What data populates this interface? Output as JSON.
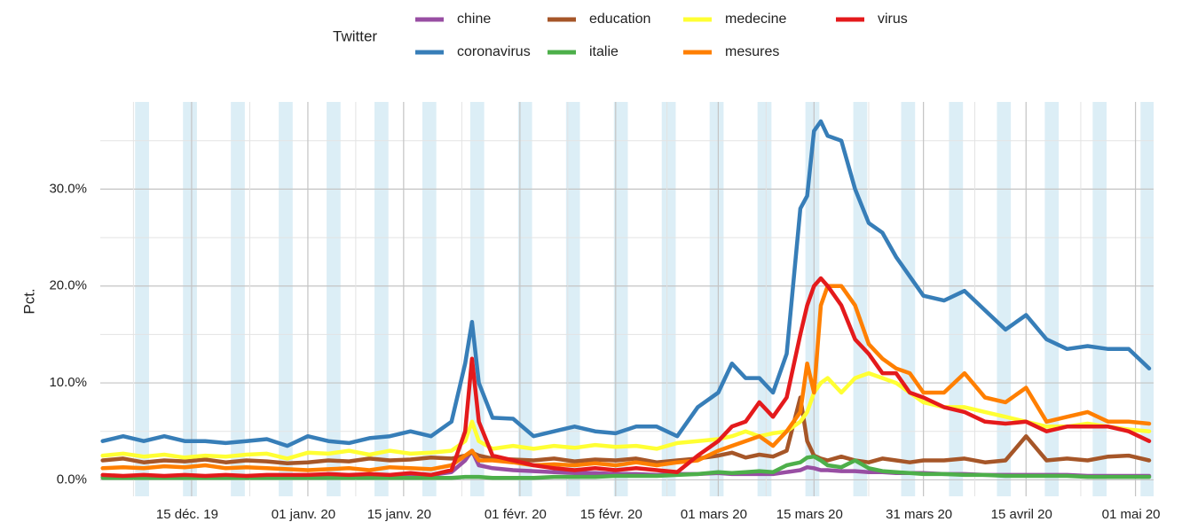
{
  "chart_data": {
    "type": "line",
    "legend_title": "Twitter",
    "y_label": "Pct.",
    "x": [
      "2019-12-02",
      "2019-12-05",
      "2019-12-08",
      "2019-12-11",
      "2019-12-14",
      "2019-12-17",
      "2019-12-20",
      "2019-12-23",
      "2019-12-26",
      "2019-12-29",
      "2020-01-01",
      "2020-01-04",
      "2020-01-07",
      "2020-01-10",
      "2020-01-13",
      "2020-01-16",
      "2020-01-19",
      "2020-01-22",
      "2020-01-24",
      "2020-01-25",
      "2020-01-26",
      "2020-01-28",
      "2020-01-31",
      "2020-02-03",
      "2020-02-06",
      "2020-02-09",
      "2020-02-12",
      "2020-02-15",
      "2020-02-18",
      "2020-02-21",
      "2020-02-24",
      "2020-02-27",
      "2020-03-01",
      "2020-03-03",
      "2020-03-05",
      "2020-03-07",
      "2020-03-09",
      "2020-03-11",
      "2020-03-13",
      "2020-03-14",
      "2020-03-15",
      "2020-03-16",
      "2020-03-17",
      "2020-03-19",
      "2020-03-21",
      "2020-03-23",
      "2020-03-25",
      "2020-03-27",
      "2020-03-29",
      "2020-03-31",
      "2020-04-03",
      "2020-04-06",
      "2020-04-09",
      "2020-04-12",
      "2020-04-15",
      "2020-04-18",
      "2020-04-21",
      "2020-04-24",
      "2020-04-27",
      "2020-04-30",
      "2020-05-03"
    ],
    "series": [
      {
        "name": "chine",
        "color": "#984ea3",
        "values": [
          0.3,
          0.3,
          0.3,
          0.3,
          0.4,
          0.3,
          0.3,
          0.3,
          0.3,
          0.3,
          0.3,
          0.3,
          0.3,
          0.3,
          0.3,
          0.4,
          0.5,
          0.8,
          2,
          3,
          1.5,
          1.2,
          1,
          0.9,
          0.8,
          0.7,
          0.7,
          0.6,
          0.6,
          0.5,
          0.6,
          0.6,
          0.7,
          0.6,
          0.6,
          0.6,
          0.6,
          0.8,
          1,
          1.3,
          1.2,
          1,
          1,
          0.9,
          0.9,
          0.8,
          0.8,
          0.7,
          0.7,
          0.7,
          0.6,
          0.6,
          0.5,
          0.5,
          0.5,
          0.5,
          0.5,
          0.4,
          0.4,
          0.4,
          0.4
        ]
      },
      {
        "name": "coronavirus",
        "color": "#377eb8",
        "values": [
          4,
          4.5,
          4,
          4.5,
          4,
          4,
          3.8,
          4,
          4.2,
          3.5,
          4.5,
          4,
          3.8,
          4.3,
          4.5,
          5,
          4.5,
          6,
          12,
          16.3,
          10,
          6.4,
          6.3,
          4.5,
          5,
          5.5,
          5,
          4.8,
          5.5,
          5.5,
          4.5,
          7.5,
          9,
          12,
          10.5,
          10.5,
          9,
          13,
          28,
          29.3,
          36,
          37,
          35.5,
          35,
          30,
          26.5,
          25.5,
          23,
          21,
          19,
          18.5,
          19.5,
          17.5,
          15.5,
          17,
          14.5,
          13.5,
          13.8,
          13.5,
          13.5,
          11.5
        ]
      },
      {
        "name": "education",
        "color": "#a65628",
        "values": [
          2,
          2.2,
          1.8,
          2,
          1.9,
          2.1,
          1.8,
          2,
          1.9,
          1.7,
          1.8,
          2,
          1.9,
          2.2,
          2,
          2.1,
          2.3,
          2.2,
          2.5,
          2.8,
          2.5,
          2.2,
          2.1,
          2,
          2.2,
          1.9,
          2.1,
          2,
          2.2,
          1.8,
          2,
          2.2,
          2.5,
          2.8,
          2.3,
          2.6,
          2.4,
          3,
          8.5,
          4,
          2.5,
          2.2,
          2,
          2.4,
          2,
          1.8,
          2.2,
          2,
          1.8,
          2,
          2,
          2.2,
          1.8,
          2,
          4.5,
          2,
          2.2,
          2,
          2.4,
          2.5,
          2
        ]
      },
      {
        "name": "italie",
        "color": "#4daf4a",
        "values": [
          0.2,
          0.2,
          0.2,
          0.2,
          0.2,
          0.2,
          0.2,
          0.2,
          0.2,
          0.2,
          0.2,
          0.2,
          0.2,
          0.2,
          0.2,
          0.2,
          0.2,
          0.2,
          0.3,
          0.3,
          0.3,
          0.2,
          0.2,
          0.2,
          0.3,
          0.3,
          0.3,
          0.4,
          0.4,
          0.4,
          0.5,
          0.6,
          0.8,
          0.7,
          0.8,
          0.9,
          0.8,
          1.5,
          1.8,
          2.3,
          2.4,
          2,
          1.5,
          1.3,
          2,
          1.2,
          0.9,
          0.8,
          0.7,
          0.6,
          0.6,
          0.5,
          0.5,
          0.4,
          0.4,
          0.4,
          0.4,
          0.3,
          0.3,
          0.3,
          0.3
        ]
      },
      {
        "name": "medecine",
        "color": "#ffff33",
        "values": [
          2.5,
          2.7,
          2.4,
          2.6,
          2.3,
          2.5,
          2.4,
          2.6,
          2.7,
          2.2,
          2.8,
          2.7,
          3,
          2.6,
          3,
          2.7,
          2.8,
          3,
          4,
          6,
          4,
          3.2,
          3.5,
          3.2,
          3.5,
          3.3,
          3.6,
          3.4,
          3.5,
          3.2,
          3.8,
          4,
          4.2,
          4.5,
          5,
          4.5,
          4.8,
          5,
          6,
          7,
          9,
          10,
          10.5,
          9,
          10.5,
          11,
          10.5,
          10,
          9,
          8,
          7.5,
          7.5,
          7,
          6.5,
          6,
          5.5,
          5.5,
          5.8,
          5.5,
          5.2,
          5
        ]
      },
      {
        "name": "mesures",
        "color": "#ff7f00",
        "values": [
          1.2,
          1.3,
          1.2,
          1.4,
          1.3,
          1.5,
          1.2,
          1.3,
          1.2,
          1.1,
          1,
          1.1,
          1.2,
          1,
          1.3,
          1.2,
          1.1,
          1.5,
          2.5,
          3,
          2,
          2,
          1.8,
          1.5,
          1.6,
          1.5,
          1.7,
          1.5,
          1.8,
          1.5,
          1.8,
          2,
          3,
          3.5,
          4,
          4.5,
          3.5,
          5,
          7,
          12,
          9,
          18,
          20,
          20,
          18,
          14,
          12.5,
          11.5,
          11,
          9,
          9,
          11,
          8.5,
          8,
          9.5,
          6,
          6.5,
          7,
          6,
          6,
          5.8
        ]
      },
      {
        "name": "virus",
        "color": "#e41a1c",
        "values": [
          0.5,
          0.4,
          0.5,
          0.4,
          0.5,
          0.4,
          0.5,
          0.4,
          0.5,
          0.5,
          0.5,
          0.6,
          0.5,
          0.6,
          0.5,
          0.7,
          0.5,
          1,
          5,
          12.5,
          6,
          2.5,
          2,
          1.5,
          1.2,
          1,
          1.2,
          1,
          1.2,
          1,
          0.8,
          2.5,
          4,
          5.5,
          6,
          8,
          6.5,
          8.5,
          15,
          18,
          20,
          20.8,
          20,
          18,
          14.5,
          13,
          11,
          11,
          9,
          8.5,
          7.5,
          7,
          6,
          5.8,
          6,
          5,
          5.5,
          5.5,
          5.5,
          5,
          4
        ]
      }
    ],
    "xlim": [
      "2019-12-01",
      "2020-05-03"
    ],
    "xticks": [
      {
        "value": "2019-12-15",
        "label": "15 déc. 19"
      },
      {
        "value": "2020-01-01",
        "label": "01 janv. 20"
      },
      {
        "value": "2020-01-15",
        "label": "15 janv. 20"
      },
      {
        "value": "2020-02-01",
        "label": "01 févr. 20"
      },
      {
        "value": "2020-02-15",
        "label": "15 févr. 20"
      },
      {
        "value": "2020-03-01",
        "label": "01 mars 20"
      },
      {
        "value": "2020-03-15",
        "label": "15 mars 20"
      },
      {
        "value": "2020-03-31",
        "label": "31 mars 20"
      },
      {
        "value": "2020-04-15",
        "label": "15 avril 20"
      },
      {
        "value": "2020-05-01",
        "label": "01 mai 20"
      }
    ],
    "ylim": [
      -1.7,
      39
    ],
    "yticks": [
      {
        "value": 0,
        "label": "0.0%"
      },
      {
        "value": 10,
        "label": "10.0%"
      },
      {
        "value": 20,
        "label": "20.0%"
      },
      {
        "value": 30,
        "label": "30.0%"
      }
    ],
    "grid": true,
    "legend": "top"
  }
}
